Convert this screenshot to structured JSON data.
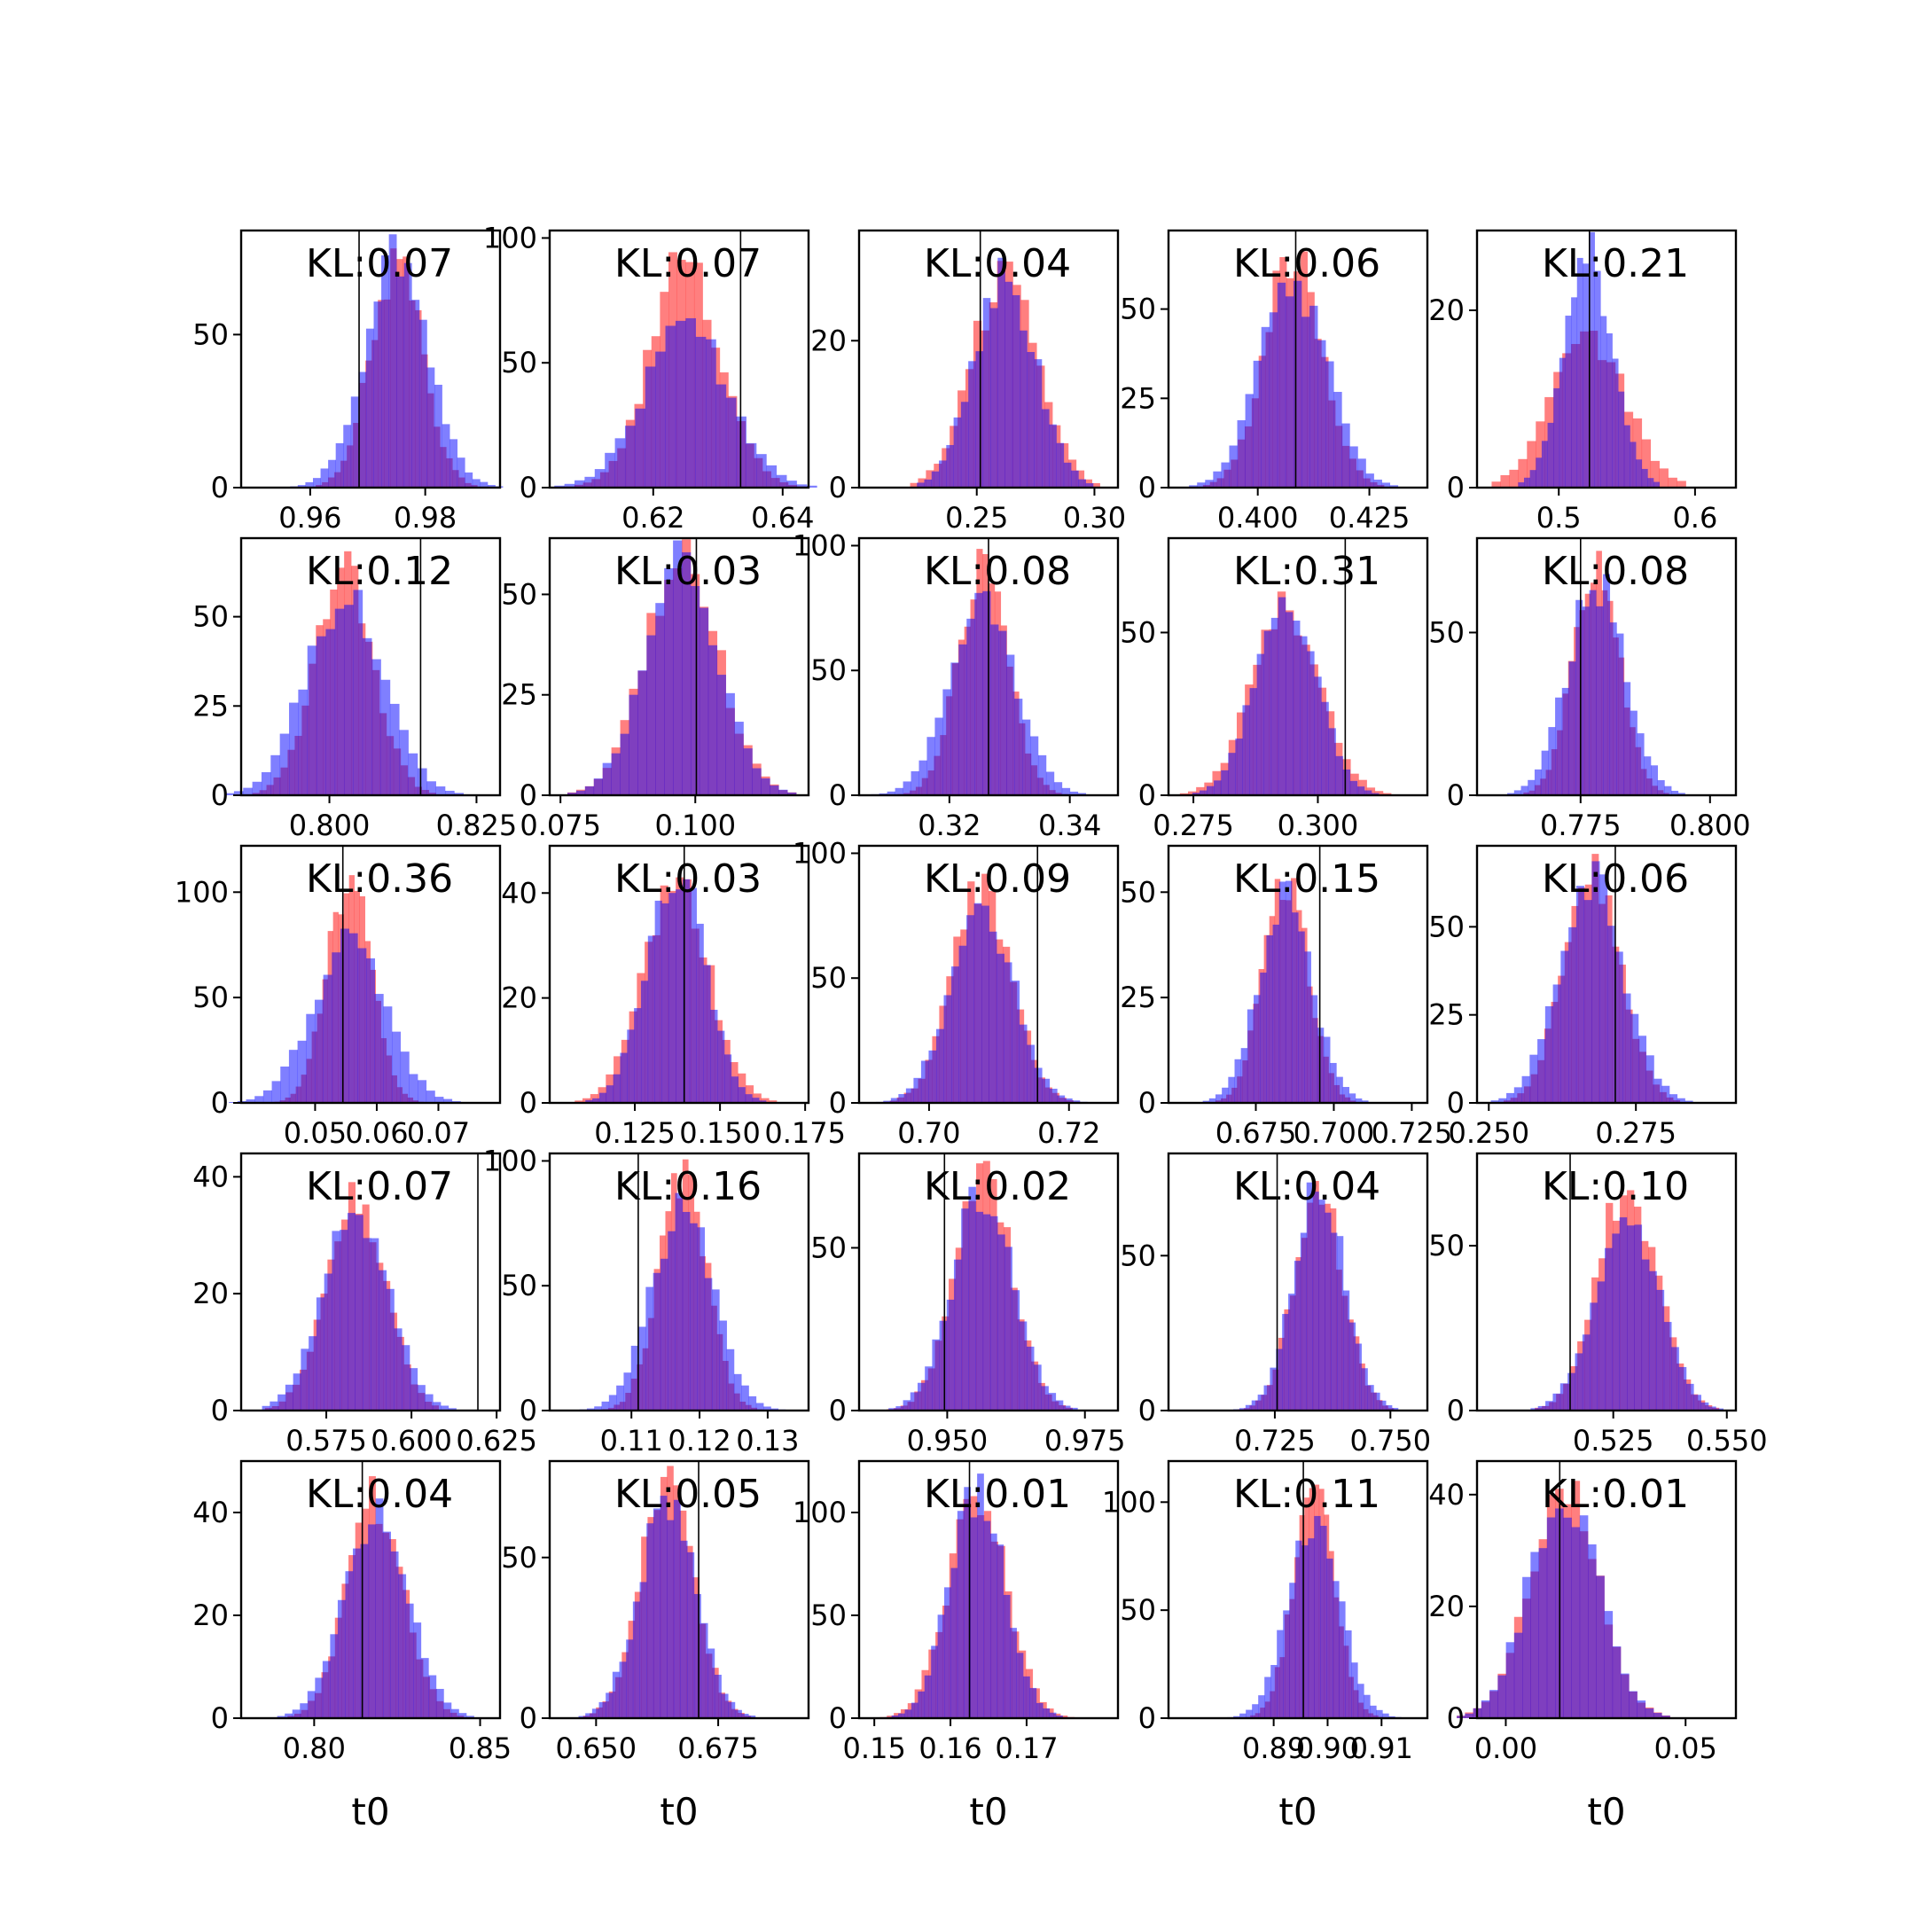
{
  "chart_data": {
    "type": "histogram-grid",
    "rows": 5,
    "cols": 5,
    "colors": {
      "series_a": "#ff0000",
      "series_b": "#0000ff",
      "vline": "#000000"
    },
    "opacity": 0.5,
    "xlabel": "t0",
    "panels": [
      {
        "kl": "KL:0.07",
        "xlim": [
          0.948,
          0.993
        ],
        "ylim": [
          0,
          84
        ],
        "mu": 0.975,
        "sa": 0.0045,
        "sb": 0.0055,
        "ha": 74,
        "hb": 75,
        "vline": 0.9685,
        "xticks": [
          0.96,
          0.98
        ],
        "xtick_labels": [
          "0.96",
          "0.98"
        ],
        "yticks": [
          0,
          50
        ],
        "ytick_labels": [
          "0",
          "50"
        ],
        "show_xlabel": false
      },
      {
        "kl": "KL:0.07",
        "xlim": [
          0.604,
          0.644
        ],
        "ylim": [
          0,
          103
        ],
        "mu": 0.625,
        "sa": 0.0055,
        "sb": 0.0065,
        "ha": 90,
        "hb": 64,
        "vline": 0.6335,
        "xticks": [
          0.62,
          0.64
        ],
        "xtick_labels": [
          "0.62",
          "0.64"
        ],
        "yticks": [
          0,
          50,
          100
        ],
        "ytick_labels": [
          "0",
          "50",
          "100"
        ],
        "show_xlabel": false
      },
      {
        "kl": "KL:0.04",
        "xlim": [
          0.2,
          0.31
        ],
        "ylim": [
          0,
          35
        ],
        "mu": 0.262,
        "sa": 0.014,
        "sb": 0.013,
        "ha": 29,
        "hb": 29,
        "vline": 0.2515,
        "xticks": [
          0.25,
          0.3
        ],
        "xtick_labels": [
          "0.25",
          "0.30"
        ],
        "yticks": [
          0,
          20
        ],
        "ytick_labels": [
          "0",
          "20"
        ],
        "show_xlabel": false
      },
      {
        "kl": "KL:0.06",
        "xlim": [
          0.38,
          0.438
        ],
        "ylim": [
          0,
          72
        ],
        "mu": 0.408,
        "sa": 0.0065,
        "sb": 0.0075,
        "ha": 65,
        "hb": 58,
        "vline": 0.4085,
        "xticks": [
          0.4,
          0.425
        ],
        "xtick_labels": [
          "0.400",
          "0.425"
        ],
        "yticks": [
          0,
          25,
          50
        ],
        "ytick_labels": [
          "0",
          "25",
          "50"
        ],
        "show_xlabel": false
      },
      {
        "kl": "KL:0.21",
        "xlim": [
          0.44,
          0.63
        ],
        "ylim": [
          0,
          29
        ],
        "mu": 0.522,
        "sa": 0.027,
        "sb": 0.018,
        "ha": 17,
        "hb": 26,
        "vline": 0.5225,
        "xticks": [
          0.5,
          0.6
        ],
        "xtick_labels": [
          "0.5",
          "0.6"
        ],
        "yticks": [
          0,
          20
        ],
        "ytick_labels": [
          "0",
          "20"
        ],
        "show_xlabel": false
      },
      {
        "kl": "KL:0.12",
        "xlim": [
          0.785,
          0.829
        ],
        "ylim": [
          0,
          72
        ],
        "mu": 0.8025,
        "sa": 0.005,
        "sb": 0.0065,
        "ha": 62,
        "hb": 56,
        "vline": 0.8155,
        "xticks": [
          0.8,
          0.825
        ],
        "xtick_labels": [
          "0.800",
          "0.825"
        ],
        "yticks": [
          0,
          25,
          50
        ],
        "ytick_labels": [
          "0",
          "25",
          "50"
        ],
        "show_xlabel": false
      },
      {
        "kl": "KL:0.03",
        "xlim": [
          0.073,
          0.121
        ],
        "ylim": [
          0,
          64
        ],
        "mu": 0.0975,
        "sa": 0.0068,
        "sb": 0.0068,
        "ha": 58,
        "hb": 58,
        "vline": 0.1002,
        "xticks": [
          0.075,
          0.1
        ],
        "xtick_labels": [
          "0.075",
          "0.100"
        ],
        "yticks": [
          0,
          25,
          50
        ],
        "ytick_labels": [
          "0",
          "25",
          "50"
        ],
        "show_xlabel": false
      },
      {
        "kl": "KL:0.08",
        "xlim": [
          0.305,
          0.348
        ],
        "ylim": [
          0,
          103
        ],
        "mu": 0.3255,
        "sa": 0.0042,
        "sb": 0.0055,
        "ha": 90,
        "hb": 74,
        "vline": 0.3265,
        "xticks": [
          0.32,
          0.34
        ],
        "xtick_labels": [
          "0.32",
          "0.34"
        ],
        "yticks": [
          0,
          50,
          100
        ],
        "ytick_labels": [
          "0",
          "50",
          "100"
        ],
        "show_xlabel": false
      },
      {
        "kl": "KL:0.31",
        "xlim": [
          0.27,
          0.322
        ],
        "ylim": [
          0,
          79
        ],
        "mu": 0.2935,
        "sa": 0.0068,
        "sb": 0.006,
        "ha": 57,
        "hb": 63,
        "vline": 0.3055,
        "xticks": [
          0.275,
          0.3
        ],
        "xtick_labels": [
          "0.275",
          "0.300"
        ],
        "yticks": [
          0,
          50
        ],
        "ytick_labels": [
          "0",
          "50"
        ],
        "show_xlabel": false
      },
      {
        "kl": "KL:0.08",
        "xlim": [
          0.755,
          0.805
        ],
        "ylim": [
          0,
          79
        ],
        "mu": 0.778,
        "sa": 0.0045,
        "sb": 0.0055,
        "ha": 70,
        "hb": 66,
        "vline": 0.775,
        "xticks": [
          0.775,
          0.8
        ],
        "xtick_labels": [
          "0.775",
          "0.800"
        ],
        "yticks": [
          0,
          50
        ],
        "ytick_labels": [
          "0",
          "50"
        ],
        "show_xlabel": false
      },
      {
        "kl": "KL:0.36",
        "xlim": [
          0.038,
          0.08
        ],
        "ylim": [
          0,
          122
        ],
        "mu": 0.0555,
        "sa": 0.0036,
        "sb": 0.0058,
        "ha": 105,
        "hb": 78,
        "vline": 0.0545,
        "xticks": [
          0.05,
          0.06,
          0.07
        ],
        "xtick_labels": [
          "0.05",
          "0.06",
          "0.07"
        ],
        "yticks": [
          0,
          50,
          100
        ],
        "ytick_labels": [
          "0",
          "50",
          "100"
        ],
        "show_xlabel": false
      },
      {
        "kl": "KL:0.03",
        "xlim": [
          0.1,
          0.176
        ],
        "ylim": [
          0,
          49
        ],
        "mu": 0.137,
        "sa": 0.0095,
        "sb": 0.0085,
        "ha": 42,
        "hb": 44,
        "vline": 0.1395,
        "xticks": [
          0.125,
          0.15,
          0.175
        ],
        "xtick_labels": [
          "0.125",
          "0.150",
          "0.175"
        ],
        "yticks": [
          0,
          20,
          40
        ],
        "ytick_labels": [
          "0",
          "20",
          "40"
        ],
        "show_xlabel": false
      },
      {
        "kl": "KL:0.09",
        "xlim": [
          0.69,
          0.727
        ],
        "ylim": [
          0,
          103
        ],
        "mu": 0.7075,
        "sa": 0.0042,
        "sb": 0.0045,
        "ha": 88,
        "hb": 79,
        "vline": 0.7155,
        "xticks": [
          0.7,
          0.72
        ],
        "xtick_labels": [
          "0.70",
          "0.72"
        ],
        "yticks": [
          0,
          50,
          100
        ],
        "ytick_labels": [
          "0",
          "50",
          "100"
        ],
        "show_xlabel": false
      },
      {
        "kl": "KL:0.15",
        "xlim": [
          0.647,
          0.73
        ],
        "ylim": [
          0,
          61
        ],
        "mu": 0.6845,
        "sa": 0.0072,
        "sb": 0.0085,
        "ha": 53,
        "hb": 48,
        "vline": 0.6955,
        "xticks": [
          0.675,
          0.7,
          0.725
        ],
        "xtick_labels": [
          "0.675",
          "0.700",
          "0.725"
        ],
        "yticks": [
          0,
          25,
          50
        ],
        "ytick_labels": [
          "0",
          "25",
          "50"
        ],
        "show_xlabel": false
      },
      {
        "kl": "KL:0.06",
        "xlim": [
          0.248,
          0.292
        ],
        "ylim": [
          0,
          73
        ],
        "mu": 0.2675,
        "sa": 0.0048,
        "sb": 0.0055,
        "ha": 66,
        "hb": 62,
        "vline": 0.2715,
        "xticks": [
          0.25,
          0.275
        ],
        "xtick_labels": [
          "0.250",
          "0.275"
        ],
        "yticks": [
          0,
          25,
          50
        ],
        "ytick_labels": [
          "0",
          "25",
          "50"
        ],
        "show_xlabel": false
      },
      {
        "kl": "KL:0.07",
        "xlim": [
          0.55,
          0.626
        ],
        "ylim": [
          0,
          44
        ],
        "mu": 0.5835,
        "sa": 0.0085,
        "sb": 0.0095,
        "ha": 38,
        "hb": 34,
        "vline": 0.6195,
        "xticks": [
          0.575,
          0.6,
          0.625
        ],
        "xtick_labels": [
          "0.575",
          "0.600",
          "0.625"
        ],
        "yticks": [
          0,
          20,
          40
        ],
        "ytick_labels": [
          "0",
          "20",
          "40"
        ],
        "show_xlabel": false
      },
      {
        "kl": "KL:0.16",
        "xlim": [
          0.098,
          0.136
        ],
        "ylim": [
          0,
          103
        ],
        "mu": 0.1175,
        "sa": 0.0035,
        "sb": 0.0045,
        "ha": 95,
        "hb": 80,
        "vline": 0.111,
        "xticks": [
          0.11,
          0.12,
          0.13
        ],
        "xtick_labels": [
          "0.11",
          "0.12",
          "0.13"
        ],
        "yticks": [
          0,
          50,
          100
        ],
        "ytick_labels": [
          "0",
          "50",
          "100"
        ],
        "show_xlabel": false
      },
      {
        "kl": "KL:0.02",
        "xlim": [
          0.934,
          0.981
        ],
        "ylim": [
          0,
          79
        ],
        "mu": 0.9565,
        "sa": 0.0052,
        "sb": 0.0055,
        "ha": 72,
        "hb": 68,
        "vline": 0.9495,
        "xticks": [
          0.95,
          0.975
        ],
        "xtick_labels": [
          "0.950",
          "0.975"
        ],
        "yticks": [
          0,
          50
        ],
        "ytick_labels": [
          "0",
          "50"
        ],
        "show_xlabel": false
      },
      {
        "kl": "KL:0.04",
        "xlim": [
          0.702,
          0.758
        ],
        "ylim": [
          0,
          83
        ],
        "mu": 0.7345,
        "sa": 0.0052,
        "sb": 0.0055,
        "ha": 73,
        "hb": 72,
        "vline": 0.7255,
        "xticks": [
          0.725,
          0.75
        ],
        "xtick_labels": [
          "0.725",
          "0.750"
        ],
        "yticks": [
          0,
          50
        ],
        "ytick_labels": [
          "0",
          "50"
        ],
        "show_xlabel": false
      },
      {
        "kl": "KL:0.10",
        "xlim": [
          0.495,
          0.552
        ],
        "ylim": [
          0,
          78
        ],
        "mu": 0.528,
        "sa": 0.0065,
        "sb": 0.0068,
        "ha": 69,
        "hb": 62,
        "vline": 0.5155,
        "xticks": [
          0.525,
          0.55
        ],
        "xtick_labels": [
          "0.525",
          "0.550"
        ],
        "yticks": [
          0,
          50
        ],
        "ytick_labels": [
          "0",
          "50"
        ],
        "show_xlabel": false
      },
      {
        "kl": "KL:0.04",
        "xlim": [
          0.778,
          0.856
        ],
        "ylim": [
          0,
          50
        ],
        "mu": 0.8185,
        "sa": 0.0085,
        "sb": 0.0095,
        "ha": 43,
        "hb": 41,
        "vline": 0.8145,
        "xticks": [
          0.8,
          0.85
        ],
        "xtick_labels": [
          "0.80",
          "0.85"
        ],
        "yticks": [
          0,
          20,
          40
        ],
        "ytick_labels": [
          "0",
          "20",
          "40"
        ],
        "show_xlabel": true
      },
      {
        "kl": "KL:0.05",
        "xlim": [
          0.6405,
          0.6935
        ],
        "ylim": [
          0,
          80
        ],
        "mu": 0.6645,
        "sa": 0.0055,
        "sb": 0.0058,
        "ha": 72,
        "hb": 66,
        "vline": 0.671,
        "xticks": [
          0.65,
          0.675
        ],
        "xtick_labels": [
          "0.650",
          "0.675"
        ],
        "yticks": [
          0,
          50
        ],
        "ytick_labels": [
          "0",
          "50"
        ],
        "show_xlabel": true
      },
      {
        "kl": "KL:0.01",
        "xlim": [
          0.148,
          0.182
        ],
        "ylim": [
          0,
          125
        ],
        "mu": 0.1635,
        "sa": 0.0038,
        "sb": 0.0036,
        "ha": 108,
        "hb": 110,
        "vline": 0.1625,
        "xticks": [
          0.15,
          0.16,
          0.17
        ],
        "xtick_labels": [
          "0.15",
          "0.16",
          "0.17"
        ],
        "yticks": [
          0,
          50,
          100
        ],
        "ytick_labels": [
          "0",
          "50",
          "100"
        ],
        "show_xlabel": true
      },
      {
        "kl": "KL:0.11",
        "xlim": [
          0.8705,
          0.9185
        ],
        "ylim": [
          0,
          119
        ],
        "mu": 0.8975,
        "sa": 0.0038,
        "sb": 0.0048,
        "ha": 108,
        "hb": 88,
        "vline": 0.8955,
        "xticks": [
          0.89,
          0.9,
          0.91
        ],
        "xtick_labels": [
          "0.89",
          "0.90",
          "0.91"
        ],
        "yticks": [
          0,
          50,
          100
        ],
        "ytick_labels": [
          "0",
          "50",
          "100"
        ],
        "show_xlabel": true
      },
      {
        "kl": "KL:0.01",
        "xlim": [
          -0.008,
          0.064
        ],
        "ylim": [
          0,
          46
        ],
        "mu": 0.016,
        "sa": 0.0095,
        "sb": 0.0095,
        "ha": 42,
        "hb": 41,
        "vline": 0.015,
        "xticks": [
          0.0,
          0.05
        ],
        "xtick_labels": [
          "0.00",
          "0.05"
        ],
        "yticks": [
          0,
          20,
          40
        ],
        "ytick_labels": [
          "0",
          "20",
          "40"
        ],
        "show_xlabel": true
      }
    ]
  }
}
